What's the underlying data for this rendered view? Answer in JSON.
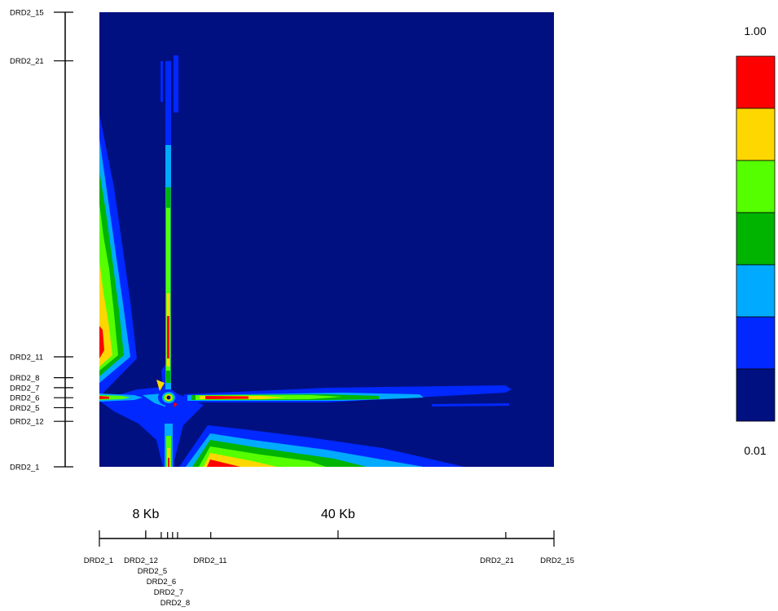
{
  "chart_data": {
    "type": "heatmap",
    "title": "",
    "colorbar": {
      "max_label": "1.00",
      "min_label": "0.01",
      "colors_top_to_bottom": [
        "#ff0000",
        "#ffd700",
        "#55ff00",
        "#00b400",
        "#00aaff",
        "#0028ff",
        "#001080"
      ]
    },
    "y_markers": [
      {
        "name": "DRD2_15",
        "pos": 1.0
      },
      {
        "name": "DRD2_21",
        "pos": 0.893
      },
      {
        "name": "DRD2_11",
        "pos": 0.242
      },
      {
        "name": "DRD2_8",
        "pos": 0.196
      },
      {
        "name": "DRD2_7",
        "pos": 0.174
      },
      {
        "name": "DRD2_6",
        "pos": 0.152
      },
      {
        "name": "DRD2_5",
        "pos": 0.13
      },
      {
        "name": "DRD2_12",
        "pos": 0.1
      },
      {
        "name": "DRD2_1",
        "pos": 0.0
      }
    ],
    "x_markers": [
      {
        "name": "DRD2_1",
        "pos": 0.0
      },
      {
        "name": "DRD2_12",
        "pos": 0.102
      },
      {
        "name": "DRD2_5",
        "pos": 0.136
      },
      {
        "name": "DRD2_6",
        "pos": 0.15
      },
      {
        "name": "DRD2_7",
        "pos": 0.161
      },
      {
        "name": "DRD2_8",
        "pos": 0.172
      },
      {
        "name": "DRD2_11",
        "pos": 0.245
      },
      {
        "name": "DRD2_21",
        "pos": 0.894
      },
      {
        "name": "DRD2_15",
        "pos": 1.0
      }
    ],
    "scale_ticks": [
      {
        "label": "8 Kb",
        "pos": 0.102
      },
      {
        "label": "40 Kb",
        "pos": 0.525
      }
    ]
  }
}
